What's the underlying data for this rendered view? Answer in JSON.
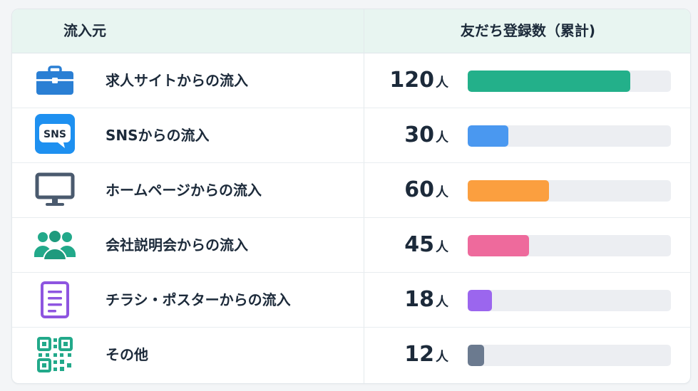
{
  "header": {
    "source_label": "流入元",
    "count_label": "友だち登録数（累計)"
  },
  "chart_data": {
    "type": "bar",
    "title": "",
    "categories": [
      "求人サイトからの流入",
      "SNSからの流入",
      "ホームページからの流入",
      "会社説明会からの流入",
      "チラシ・ポスターからの流入",
      "その他"
    ],
    "values": [
      120,
      30,
      60,
      45,
      18,
      12
    ],
    "unit": "人",
    "xlim": [
      0,
      150
    ],
    "colors": [
      "#23b08a",
      "#4a98f0",
      "#fb9f3f",
      "#ee6a9c",
      "#9b66ee",
      "#6b7a8f"
    ],
    "icons": [
      "briefcase-icon",
      "sns-icon",
      "monitor-icon",
      "people-icon",
      "flyer-icon",
      "qr-code-icon"
    ]
  },
  "rows": [
    {
      "label": "求人サイトからの流入",
      "value": "120",
      "unit": "人"
    },
    {
      "label": "SNSからの流入",
      "value": "30",
      "unit": "人"
    },
    {
      "label": "ホームページからの流入",
      "value": "60",
      "unit": "人"
    },
    {
      "label": "会社説明会からの流入",
      "value": "45",
      "unit": "人"
    },
    {
      "label": "チラシ・ポスターからの流入",
      "value": "18",
      "unit": "人"
    },
    {
      "label": "その他",
      "value": "12",
      "unit": "人"
    }
  ],
  "sns_icon_text": "SNS"
}
